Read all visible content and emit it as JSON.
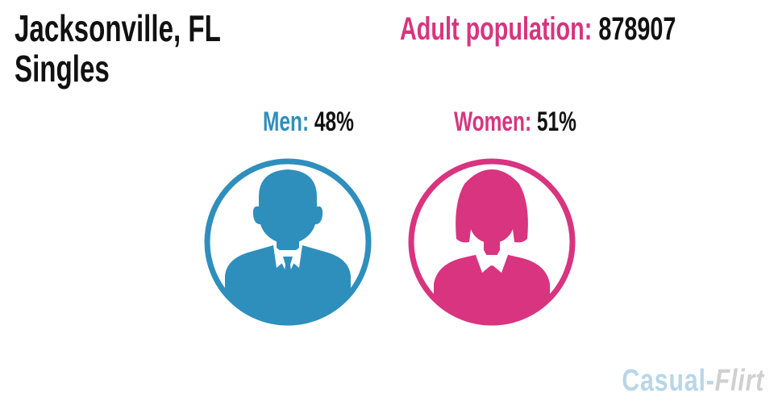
{
  "title": {
    "line1": "Jacksonville, FL",
    "line2": "Singles"
  },
  "population": {
    "label": "Adult population:",
    "value": "878907"
  },
  "men": {
    "label": "Men:",
    "value": "48%"
  },
  "women": {
    "label": "Women:",
    "value": "51%"
  },
  "brand": {
    "part1": "Casual",
    "separator": "-",
    "part2": "Flirt"
  },
  "colors": {
    "men": "#2e8fbd",
    "women": "#d8347f",
    "text": "#111111"
  },
  "icons": {
    "men": "man-avatar-icon",
    "women": "woman-avatar-icon"
  }
}
